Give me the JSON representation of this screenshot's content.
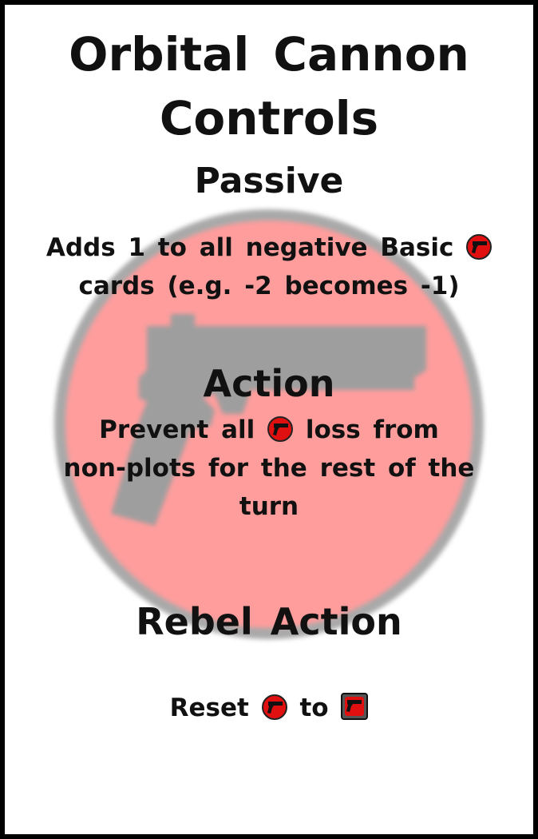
{
  "card": {
    "title_line1": "Orbital Cannon",
    "title_line2": "Controls",
    "background_icon": "gun-emblem-icon",
    "colors": {
      "token_red": "#e01010",
      "emblem_red": "#ff8a8a",
      "emblem_ring": "#9a9a9a",
      "border": "#000000"
    }
  },
  "passive": {
    "heading": "Passive",
    "line1_before": "Adds 1 to all negative Basic",
    "line2": "cards (e.g. -2 becomes -1)"
  },
  "action": {
    "heading": "Action",
    "line1_before": "Prevent all",
    "line1_after": "loss from",
    "line2": "non-plots for the rest of the",
    "line3": "turn"
  },
  "rebel_action": {
    "heading": "Rebel Action",
    "before": "Reset",
    "middle": "to"
  }
}
